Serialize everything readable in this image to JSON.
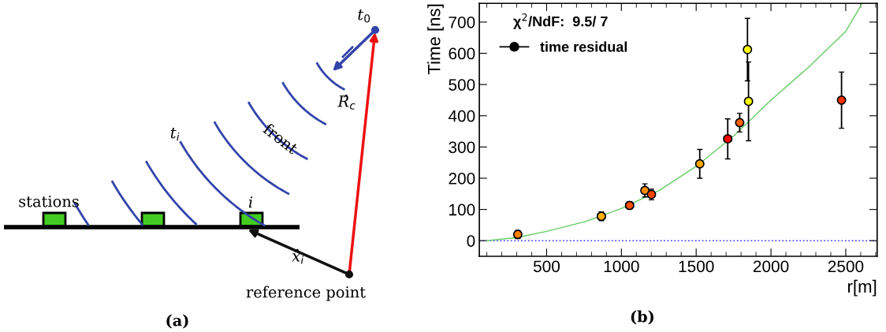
{
  "chart_data": [
    {
      "type": "other",
      "annotations": [
        "stations",
        "i",
        "t$_{i}$",
        "front",
        "R̂$_{c}$",
        "t$_{0}$",
        "x̂$_{i}$",
        "reference point",
        "(a)"
      ]
    },
    {
      "type": "scatter",
      "xlabel": "r[m]",
      "ylabel": "Time [ns]",
      "xlim": [
        50,
        2710
      ],
      "ylim": [
        -50,
        760
      ],
      "xticks": [
        500,
        1000,
        1500,
        2000,
        2500
      ],
      "yticks": [
        0,
        100,
        200,
        300,
        400,
        500,
        600,
        700
      ],
      "legend": "top left",
      "grid": false,
      "annotations": [
        "χ$^{2}$/NdF:  9.5/ 7",
        "(b)"
      ],
      "ref_lines": [
        {
          "axis": "y",
          "value": 0,
          "color": "#3333ff",
          "line_style": "dotted"
        }
      ],
      "series": [
        {
          "type": "line",
          "color": "#66cc66",
          "line_style": "solid",
          "marker": "none",
          "x": [
            100,
            300,
            500,
            750,
            1000,
            1250,
            1500,
            1750,
            2000,
            2250,
            2500,
            2610
          ],
          "values": [
            0,
            10,
            30,
            60,
            103,
            160,
            238,
            335,
            450,
            555,
            670,
            760
          ]
        },
        {
          "type": "scatter",
          "name": "time residual",
          "color": "#000000",
          "marker": "circle",
          "colors": [
            "#ff7f00",
            "#ffb000",
            "#ff5000",
            "#ff8c00",
            "#ff4500",
            "#ffa500",
            "#ff0000",
            "#ff6000",
            "#ffff00",
            "#ffff00",
            "#ff3000"
          ],
          "x": [
            307,
            866,
            1055,
            1157,
            1201,
            1524,
            1711,
            1791,
            1843,
            1850,
            2472
          ],
          "values": [
            20,
            78,
            113,
            161,
            148,
            246,
            326,
            378,
            612,
            446,
            450
          ],
          "errors": [
            13,
            14,
            12,
            21,
            17,
            46,
            64,
            30,
            100,
            126,
            90
          ],
          "xerrors": [
            null,
            25,
            25,
            null,
            null,
            null,
            25,
            null,
            20,
            20,
            null
          ]
        }
      ]
    }
  ]
}
